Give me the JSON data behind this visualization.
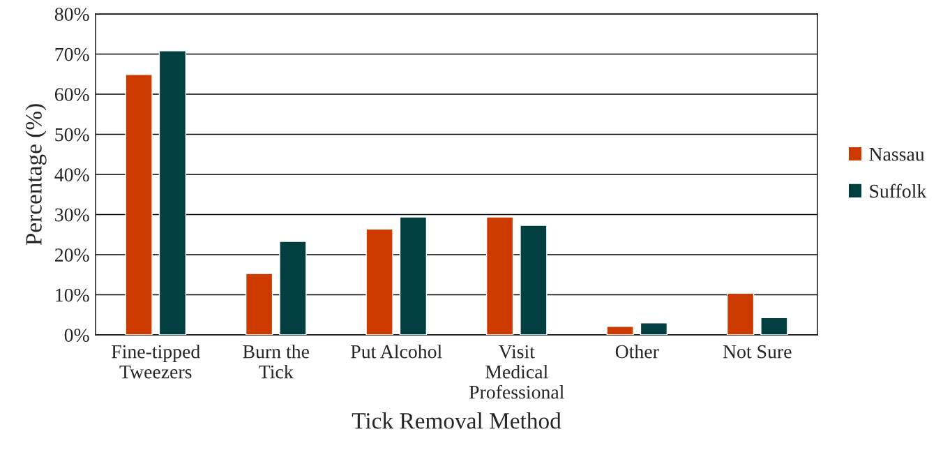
{
  "chart_data": {
    "type": "bar",
    "xlabel": "Tick Removal Method",
    "ylabel": "Percentage (%)",
    "categories": [
      "Fine-tipped\nTweezers",
      "Burn the\nTick",
      "Put Alcohol",
      "Visit\nMedical\nProfessional",
      "Other",
      "Not Sure"
    ],
    "series": [
      {
        "name": "Nassau",
        "color": "#cc3a00",
        "values": [
          64.9,
          15.3,
          26.4,
          29.4,
          2.1,
          10.4
        ]
      },
      {
        "name": "Suffolk",
        "color": "#023f41",
        "values": [
          70.8,
          23.3,
          29.4,
          27.3,
          3.0,
          4.3
        ]
      }
    ],
    "ylim": [
      0,
      80
    ],
    "yticks": [
      {
        "value": 0,
        "label": "0%"
      },
      {
        "value": 10,
        "label": "10%"
      },
      {
        "value": 20,
        "label": "20%"
      },
      {
        "value": 30,
        "label": "30%"
      },
      {
        "value": 40,
        "label": "40%"
      },
      {
        "value": 50,
        "label": "50%"
      },
      {
        "value": 60,
        "label": "60%"
      },
      {
        "value": 70,
        "label": "70%"
      },
      {
        "value": 80,
        "label": "80%"
      }
    ],
    "grid": "y",
    "legend": "right"
  }
}
